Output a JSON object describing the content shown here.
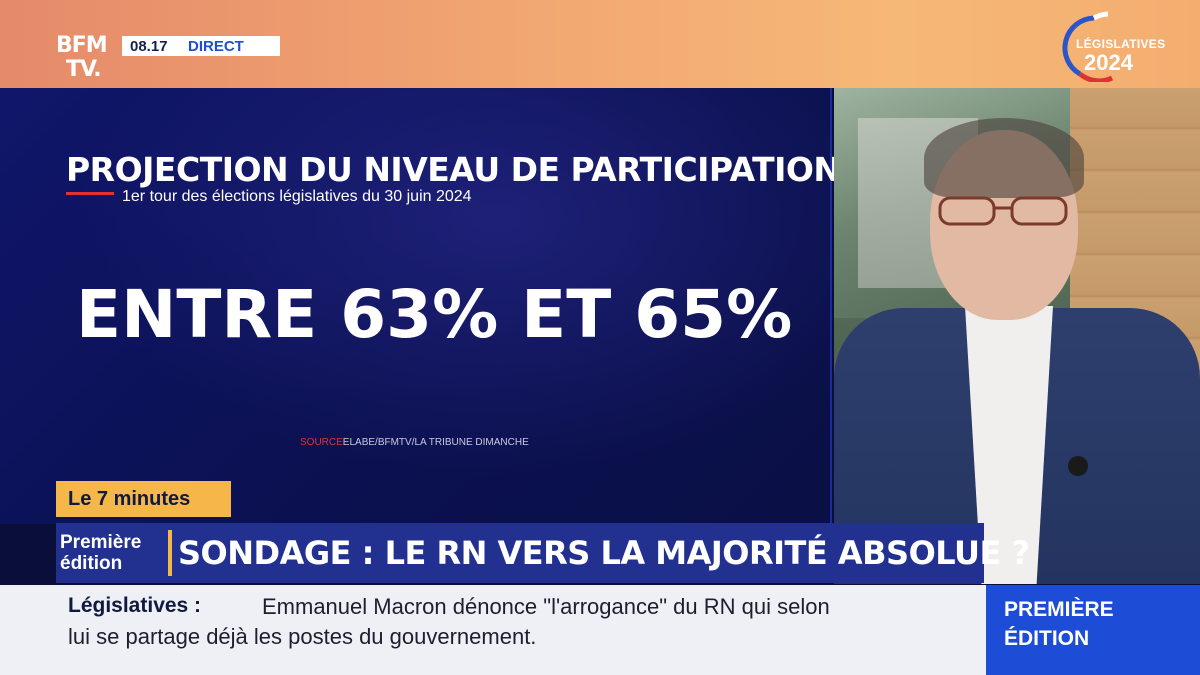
{
  "channel": {
    "logo_line1": "BFM",
    "logo_line2": "TV.",
    "time": "08.17",
    "live_label": "DIRECT"
  },
  "event_badge": {
    "line1": "LÉGISLATIVES",
    "line2": "2024"
  },
  "graphic": {
    "title": "PROJECTION DU NIVEAU DE PARTICIPATION",
    "subtitle": "1er tour des élections législatives du 30 juin 2024",
    "figure": "ENTRE 63% ET 65%",
    "source_label": "SOURCE",
    "source_text": "ELABE/BFMTV/LA TRIBUNE DIMANCHE"
  },
  "lower_third": {
    "segment_tag": "Le 7 minutes",
    "edition_line1": "Première",
    "edition_line2": "édition",
    "headline": "SONDAGE : LE RN VERS LA MAJORITÉ ABSOLUE ?"
  },
  "ticker": {
    "label": "Législatives :",
    "line1": "Emmanuel Macron dénonce \"l'arrogance\" du RN qui selon",
    "line2": "lui se partage déjà les postes du gouvernement."
  },
  "show_badge": {
    "line1": "PREMIÈRE",
    "line2": "ÉDITION"
  },
  "colors": {
    "band_orange": "#f2a872",
    "graphic_navy": "#0b1152",
    "accent_red": "#e0322e",
    "tag_yellow": "#f5b74a",
    "headline_blue": "#22318f",
    "badge_blue": "#1d4cd6"
  }
}
